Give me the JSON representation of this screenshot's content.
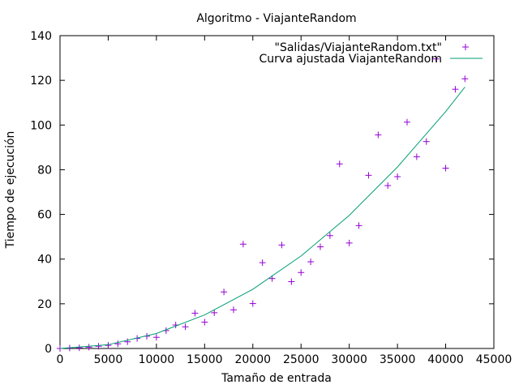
{
  "chart_data": {
    "type": "scatter",
    "title": "Algoritmo - ViajanteRandom",
    "xlabel": "Tamaño de entrada",
    "ylabel": "Tiempo de ejecución",
    "xlim": [
      0,
      45000
    ],
    "ylim": [
      0,
      140
    ],
    "xticks": [
      0,
      5000,
      10000,
      15000,
      20000,
      25000,
      30000,
      35000,
      40000,
      45000
    ],
    "yticks": [
      0,
      20,
      40,
      60,
      80,
      100,
      120,
      140
    ],
    "grid": false,
    "legend_position": "top-right",
    "series": [
      {
        "name": "\"Salidas/ViajanteRandom.txt\"",
        "kind": "points",
        "marker": "plus",
        "color": "#9400d3",
        "x": [
          0,
          1000,
          2000,
          3000,
          4000,
          5000,
          6000,
          7000,
          8000,
          9000,
          10000,
          11000,
          12000,
          13000,
          14000,
          15000,
          16000,
          17000,
          18000,
          19000,
          20000,
          21000,
          22000,
          23000,
          24000,
          25000,
          26000,
          27000,
          28000,
          29000,
          30000,
          31000,
          32000,
          33000,
          34000,
          35000,
          36000,
          37000,
          38000,
          39000,
          40000,
          41000,
          42000
        ],
        "y": [
          0,
          0.2,
          0.3,
          0.6,
          1,
          1.4,
          2.1,
          3,
          4.5,
          5.5,
          5,
          8,
          10.5,
          9.7,
          15.8,
          11.8,
          16,
          25.3,
          17.3,
          46.7,
          20.1,
          38.4,
          31.3,
          46.3,
          29.9,
          34,
          38.8,
          45.5,
          50.5,
          82.6,
          47.2,
          55,
          77.5,
          95.6,
          72.9,
          76.9,
          101.3,
          85.8,
          92.6,
          129.6,
          80.7,
          116,
          120.7
        ]
      },
      {
        "name": "Curva ajustada ViajanteRandom",
        "kind": "line",
        "color": "#009e73",
        "x": [
          0,
          5000,
          10000,
          15000,
          20000,
          25000,
          30000,
          35000,
          40000,
          42000
        ],
        "y": [
          0,
          1.7,
          6.7,
          15,
          26.5,
          41.4,
          59.6,
          81.2,
          106,
          117
        ]
      }
    ]
  }
}
